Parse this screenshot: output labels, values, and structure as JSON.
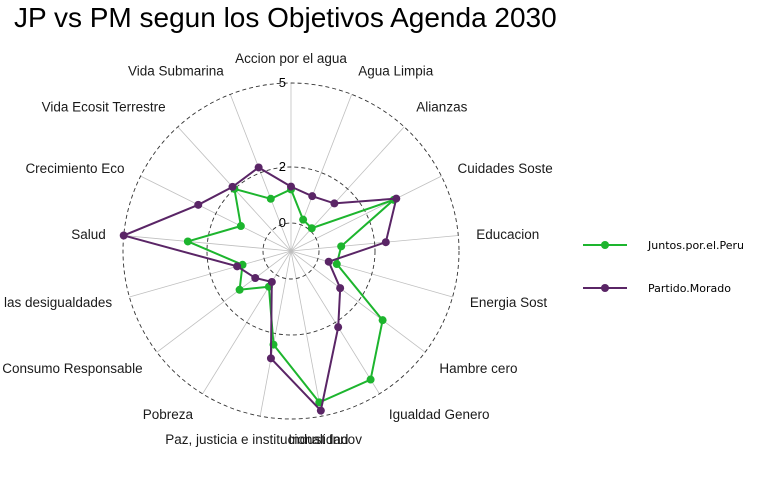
{
  "chart_data": {
    "type": "radar",
    "title": "JP vs PM segun los Objetivos Agenda 2030",
    "axes": [
      "Accion por el agua",
      "Agua Limpia",
      "Alianzas",
      "Cuidades Soste",
      "Educacion",
      "Energia Sost",
      "Hambre cero",
      "Igualdad Genero",
      "Indust Innov",
      "Paz, justicia e institucionalidad",
      "Pobreza",
      "Produccion y Consumo Responsable",
      "Reduccion de las desigualdades",
      "Salud",
      "Crecimiento Eco",
      "Vida Ecosit Terrestre",
      "Vida Submarina"
    ],
    "rticks": [
      0,
      2,
      5
    ],
    "rlim": [
      -1,
      5
    ],
    "series": [
      {
        "name": "Juntos.por.el.Peru",
        "color": "#1DB52E",
        "values": [
          1.2,
          0.2,
          0.1,
          3.1,
          0.8,
          0.7,
          3.1,
          4.4,
          4.5,
          2.4,
          0.5,
          1.3,
          0.8,
          2.7,
          1.0,
          2.0,
          1.0
        ]
      },
      {
        "name": "Partido.Morado",
        "color": "#5A2566",
        "values": [
          1.3,
          1.1,
          1.3,
          3.2,
          2.4,
          0.4,
          1.2,
          2.2,
          4.8,
          2.9,
          0.3,
          0.6,
          1.0,
          5.0,
          2.7,
          2.1,
          2.2
        ]
      }
    ],
    "grid": true,
    "legend_position": "right"
  }
}
